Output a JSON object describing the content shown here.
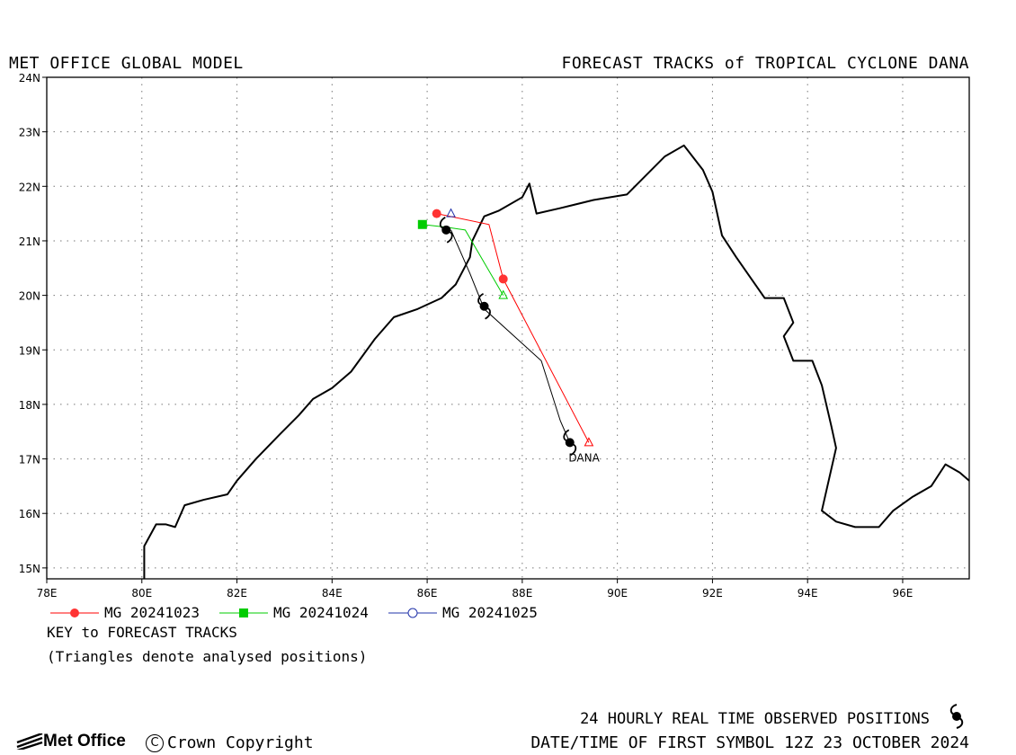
{
  "header": {
    "left_title": "MET OFFICE GLOBAL MODEL",
    "right_title": "FORECAST TRACKS of TROPICAL CYCLONE DANA"
  },
  "chart_data": {
    "type": "map",
    "xlim": [
      78,
      97.4
    ],
    "ylim": [
      14.8,
      24
    ],
    "x_ticks": [
      78,
      80,
      82,
      84,
      86,
      88,
      90,
      92,
      94,
      96
    ],
    "x_tick_labels": [
      "78E",
      "80E",
      "82E",
      "84E",
      "86E",
      "88E",
      "90E",
      "92E",
      "94E",
      "96E"
    ],
    "y_ticks": [
      15,
      16,
      17,
      18,
      19,
      20,
      21,
      22,
      23,
      24
    ],
    "y_tick_labels": [
      "15N",
      "16N",
      "17N",
      "18N",
      "19N",
      "20N",
      "21N",
      "22N",
      "23N",
      "24N"
    ],
    "grid": true,
    "coastline": [
      [
        80.05,
        14.8
      ],
      [
        80.05,
        15.4
      ],
      [
        80.3,
        15.8
      ],
      [
        80.5,
        15.8
      ],
      [
        80.7,
        15.75
      ],
      [
        80.9,
        16.15
      ],
      [
        81.3,
        16.25
      ],
      [
        81.8,
        16.35
      ],
      [
        82.0,
        16.6
      ],
      [
        82.4,
        17.0
      ],
      [
        82.9,
        17.45
      ],
      [
        83.3,
        17.8
      ],
      [
        83.6,
        18.1
      ],
      [
        84.0,
        18.3
      ],
      [
        84.4,
        18.6
      ],
      [
        84.9,
        19.2
      ],
      [
        85.3,
        19.6
      ],
      [
        85.8,
        19.75
      ],
      [
        86.3,
        19.95
      ],
      [
        86.6,
        20.2
      ],
      [
        86.9,
        20.7
      ],
      [
        86.95,
        21.0
      ],
      [
        87.2,
        21.45
      ],
      [
        87.5,
        21.55
      ],
      [
        88.0,
        21.8
      ],
      [
        88.15,
        22.05
      ],
      [
        88.3,
        21.5
      ],
      [
        88.8,
        21.6
      ],
      [
        89.5,
        21.75
      ],
      [
        90.2,
        21.85
      ],
      [
        90.6,
        22.2
      ],
      [
        91.0,
        22.55
      ],
      [
        91.4,
        22.75
      ],
      [
        91.8,
        22.3
      ],
      [
        92.0,
        21.9
      ],
      [
        92.2,
        21.1
      ],
      [
        92.5,
        20.7
      ],
      [
        93.1,
        19.95
      ],
      [
        93.5,
        19.95
      ],
      [
        93.7,
        19.5
      ],
      [
        93.5,
        19.25
      ],
      [
        93.7,
        18.8
      ],
      [
        94.1,
        18.8
      ],
      [
        94.3,
        18.35
      ],
      [
        94.5,
        17.6
      ],
      [
        94.6,
        17.2
      ],
      [
        94.3,
        16.05
      ],
      [
        94.6,
        15.85
      ],
      [
        95.0,
        15.75
      ],
      [
        95.5,
        15.75
      ],
      [
        95.8,
        16.05
      ],
      [
        96.2,
        16.3
      ],
      [
        96.6,
        16.5
      ],
      [
        96.9,
        16.9
      ],
      [
        97.2,
        16.75
      ],
      [
        97.4,
        16.6
      ]
    ],
    "series": [
      {
        "name": "MG 20241023",
        "color": "#ff0000",
        "marker": "filled-circle",
        "points": [
          [
            89.4,
            17.3
          ],
          [
            87.6,
            20.3
          ],
          [
            87.3,
            21.3
          ],
          [
            86.2,
            21.5
          ]
        ]
      },
      {
        "name": "MG 20241024",
        "color": "#00cc00",
        "marker": "filled-square",
        "points": [
          [
            87.6,
            20.0
          ],
          [
            86.8,
            21.2
          ],
          [
            86.4,
            21.25
          ],
          [
            85.9,
            21.3
          ]
        ]
      },
      {
        "name": "MG 20241025",
        "color": "#2233aa",
        "marker": "open-circle",
        "points": [
          [
            86.5,
            21.5
          ]
        ]
      }
    ],
    "observed_track": {
      "color": "#000000",
      "points": [
        [
          89.0,
          17.3
        ],
        [
          88.8,
          17.7
        ],
        [
          88.4,
          18.8
        ],
        [
          87.2,
          19.75
        ],
        [
          86.9,
          20.4
        ],
        [
          86.5,
          21.2
        ]
      ],
      "symbols": [
        [
          89.0,
          17.3
        ],
        [
          87.2,
          19.8
        ],
        [
          86.4,
          21.2
        ]
      ]
    },
    "analysed_positions": [
      {
        "x": 89.4,
        "y": 17.3,
        "color": "#ff0000"
      },
      {
        "x": 87.6,
        "y": 20.0,
        "color": "#00cc00"
      },
      {
        "x": 86.5,
        "y": 21.5,
        "color": "#2233aa"
      }
    ],
    "storm_label": {
      "text": "DANA",
      "x": 89.3,
      "y": 17.0
    }
  },
  "legend": {
    "items": [
      {
        "label": "MG 20241023",
        "color": "#ff0000",
        "marker": "filled-circle"
      },
      {
        "label": "MG 20241024",
        "color": "#00cc00",
        "marker": "filled-square"
      },
      {
        "label": "MG 20241025",
        "color": "#2233aa",
        "marker": "open-circle"
      }
    ],
    "title": "KEY to FORECAST TRACKS",
    "note": "(Triangles denote analysed positions)"
  },
  "footer": {
    "observed_label": "24 HOURLY REAL TIME OBSERVED POSITIONS",
    "first_symbol": "DATE/TIME OF FIRST SYMBOL 12Z 23 OCTOBER 2024",
    "logo_text": "Met Office",
    "copyright": "Crown Copyright",
    "copyright_symbol": "C"
  }
}
